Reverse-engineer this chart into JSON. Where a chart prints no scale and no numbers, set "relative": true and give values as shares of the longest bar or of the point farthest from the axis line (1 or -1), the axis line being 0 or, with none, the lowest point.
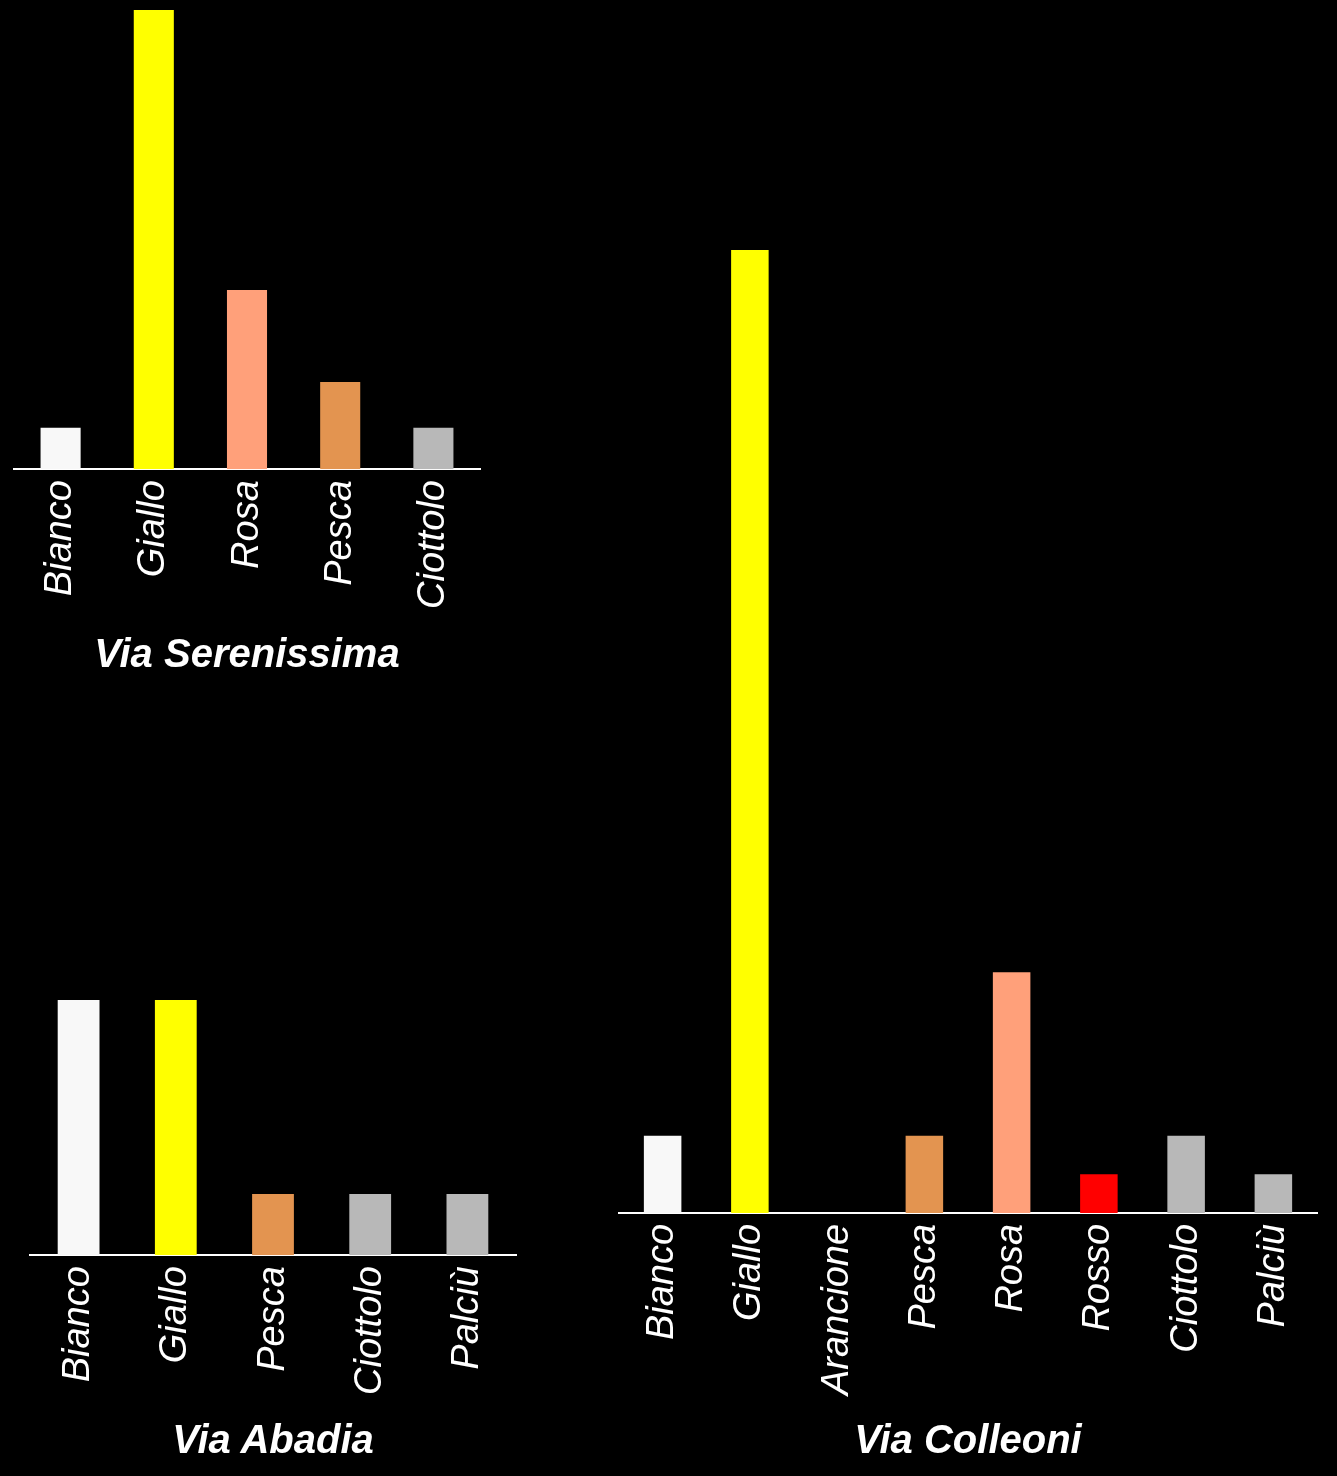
{
  "chart_data": [
    {
      "type": "bar",
      "title": "Via Serenissima",
      "categories": [
        "Bianco",
        "Giallo",
        "Rosa",
        "Pesca",
        "Ciottolo"
      ],
      "values": [
        0.09,
        1,
        0.39,
        0.19,
        0.09
      ],
      "colors": [
        "#f8f8f8",
        "#ffff00",
        "#ffa07a",
        "#e39450",
        "#b8b8b8"
      ],
      "relative": true
    },
    {
      "type": "bar",
      "title": "Via Abadia",
      "categories": [
        "Bianco",
        "Giallo",
        "Pesca",
        "Ciottolo",
        "Palciù"
      ],
      "values": [
        1,
        1,
        0.24,
        0.24,
        0.24
      ],
      "colors": [
        "#f8f8f8",
        "#ffff00",
        "#e39450",
        "#b8b8b8",
        "#b8b8b8"
      ],
      "relative": true
    },
    {
      "type": "bar",
      "title": "Via Colleoni",
      "categories": [
        "Bianco",
        "Giallo",
        "Arancione",
        "Pesca",
        "Rosa",
        "Rosso",
        "Ciottolo",
        "Palciù"
      ],
      "values": [
        0.08,
        1,
        0,
        0.08,
        0.25,
        0.04,
        0.08,
        0.04
      ],
      "colors": [
        "#f8f8f8",
        "#ffff00",
        "#ff8c00",
        "#e39450",
        "#ffa07a",
        "#ff0000",
        "#b8b8b8",
        "#b8b8b8"
      ],
      "relative": true
    }
  ]
}
